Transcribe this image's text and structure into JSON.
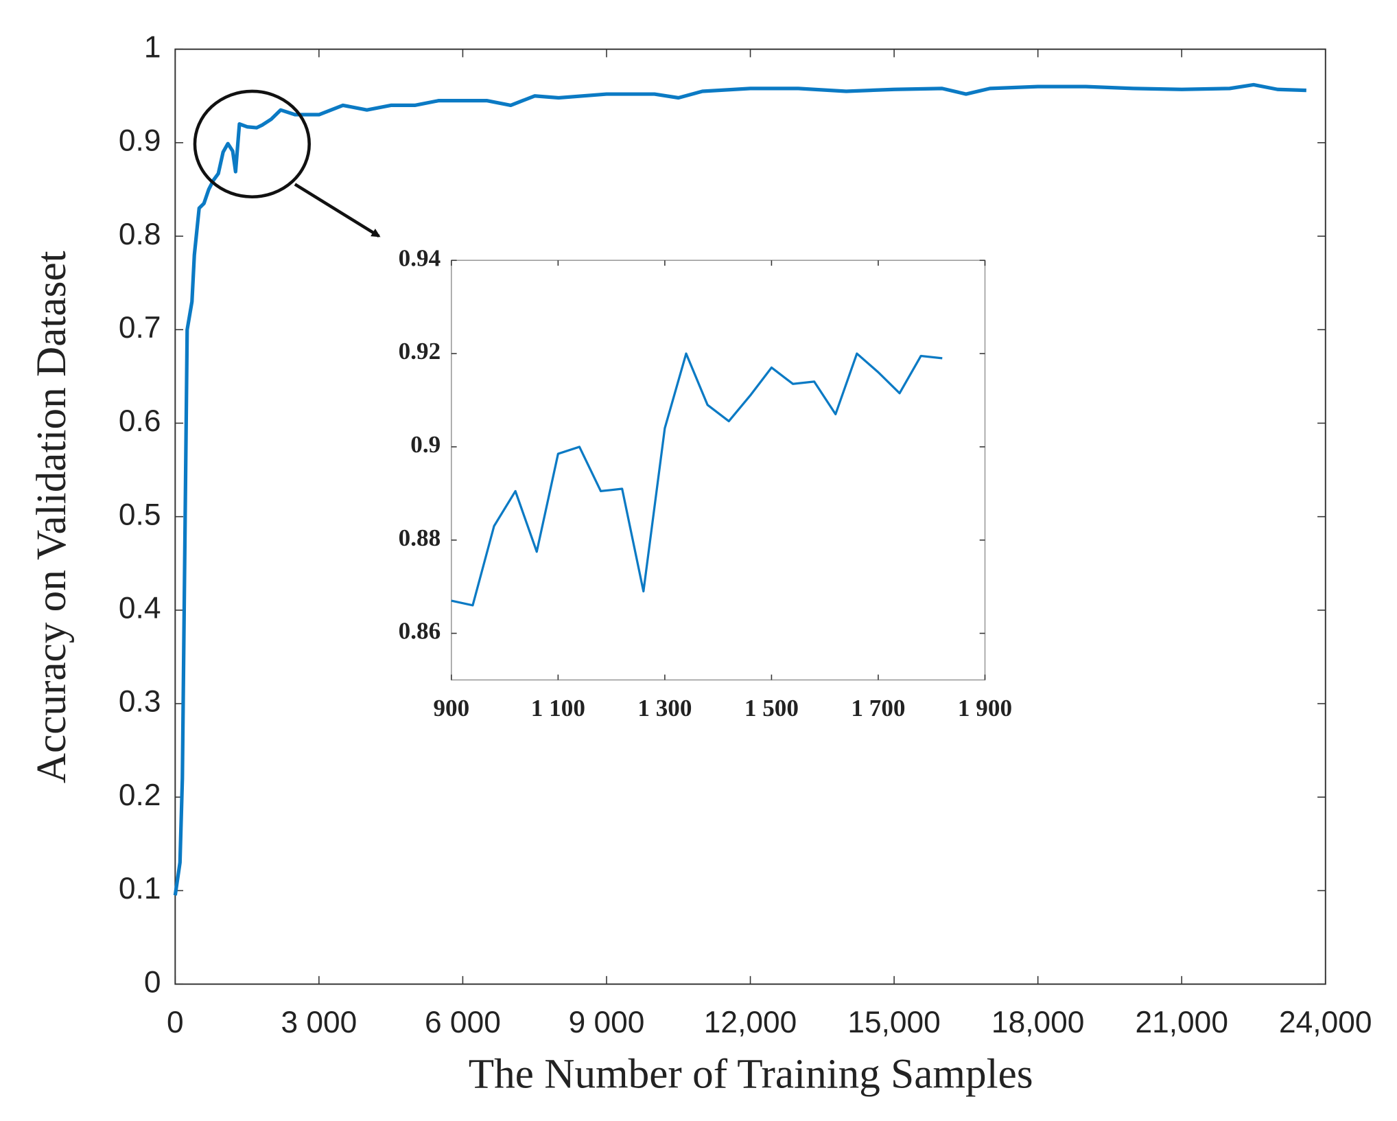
{
  "chart_data": [
    {
      "type": "line",
      "xlabel": "The Number of Training Samples",
      "ylabel": "Accuracy on Validation Dataset",
      "color": "#0b7ac4",
      "x": [
        0,
        100,
        150,
        250,
        350,
        400,
        500,
        600,
        700,
        800,
        900,
        1000,
        1100,
        1200,
        1260,
        1340,
        1500,
        1700,
        1820,
        2000,
        2200,
        2500,
        3000,
        3500,
        4000,
        4500,
        5000,
        5500,
        6000,
        6500,
        7000,
        7500,
        8000,
        9000,
        10000,
        10500,
        11000,
        12000,
        13000,
        14000,
        15000,
        16000,
        16500,
        17000,
        18000,
        19000,
        20000,
        21000,
        22000,
        22500,
        23000,
        23600
      ],
      "values": [
        0.095,
        0.13,
        0.22,
        0.7,
        0.73,
        0.78,
        0.83,
        0.835,
        0.85,
        0.86,
        0.867,
        0.89,
        0.899,
        0.891,
        0.869,
        0.92,
        0.917,
        0.916,
        0.919,
        0.925,
        0.935,
        0.93,
        0.93,
        0.94,
        0.935,
        0.94,
        0.94,
        0.945,
        0.945,
        0.945,
        0.94,
        0.95,
        0.948,
        0.952,
        0.952,
        0.948,
        0.955,
        0.958,
        0.958,
        0.955,
        0.957,
        0.958,
        0.952,
        0.958,
        0.96,
        0.96,
        0.958,
        0.957,
        0.958,
        0.962,
        0.957,
        0.956
      ],
      "xlim": [
        0,
        24000
      ],
      "xticks": [
        0,
        {
          "value": 3000,
          "label": "3 000"
        },
        {
          "value": 6000,
          "label": "6 000"
        },
        {
          "value": 9000,
          "label": "9 000"
        },
        {
          "value": 12000,
          "label": "12,000"
        },
        {
          "value": 15000,
          "label": "15,000"
        },
        {
          "value": 18000,
          "label": "18,000"
        },
        {
          "value": 21000,
          "label": "21,000"
        },
        {
          "value": 24000,
          "label": "24,000"
        }
      ],
      "ylim": [
        0,
        1
      ],
      "yticks": [
        0,
        0.1,
        0.2,
        0.3,
        0.4,
        0.5,
        0.6,
        0.7,
        0.8,
        0.9,
        1
      ]
    },
    {
      "type": "line",
      "color": "#0b7ac4",
      "x": [
        900,
        940,
        980,
        1020,
        1060,
        1100,
        1140,
        1180,
        1220,
        1260,
        1300,
        1340,
        1380,
        1420,
        1460,
        1500,
        1540,
        1580,
        1620,
        1660,
        1700,
        1740,
        1780,
        1820
      ],
      "values": [
        0.867,
        0.866,
        0.883,
        0.8905,
        0.8775,
        0.8985,
        0.9,
        0.8905,
        0.891,
        0.869,
        0.904,
        0.92,
        0.909,
        0.9055,
        0.911,
        0.917,
        0.9135,
        0.914,
        0.907,
        0.92,
        0.916,
        0.9115,
        0.9195,
        0.919
      ],
      "xlim": [
        900,
        1900
      ],
      "xticks": [
        900,
        {
          "value": 1100,
          "label": "1 100"
        },
        {
          "value": 1300,
          "label": "1 300"
        },
        {
          "value": 1500,
          "label": "1 500"
        },
        {
          "value": 1700,
          "label": "1 700"
        },
        {
          "value": 1900,
          "label": "1 900"
        }
      ],
      "ylim": [
        0.85,
        0.94
      ],
      "yticks": [
        0.86,
        0.88,
        0.9,
        0.92,
        0.94
      ]
    }
  ]
}
